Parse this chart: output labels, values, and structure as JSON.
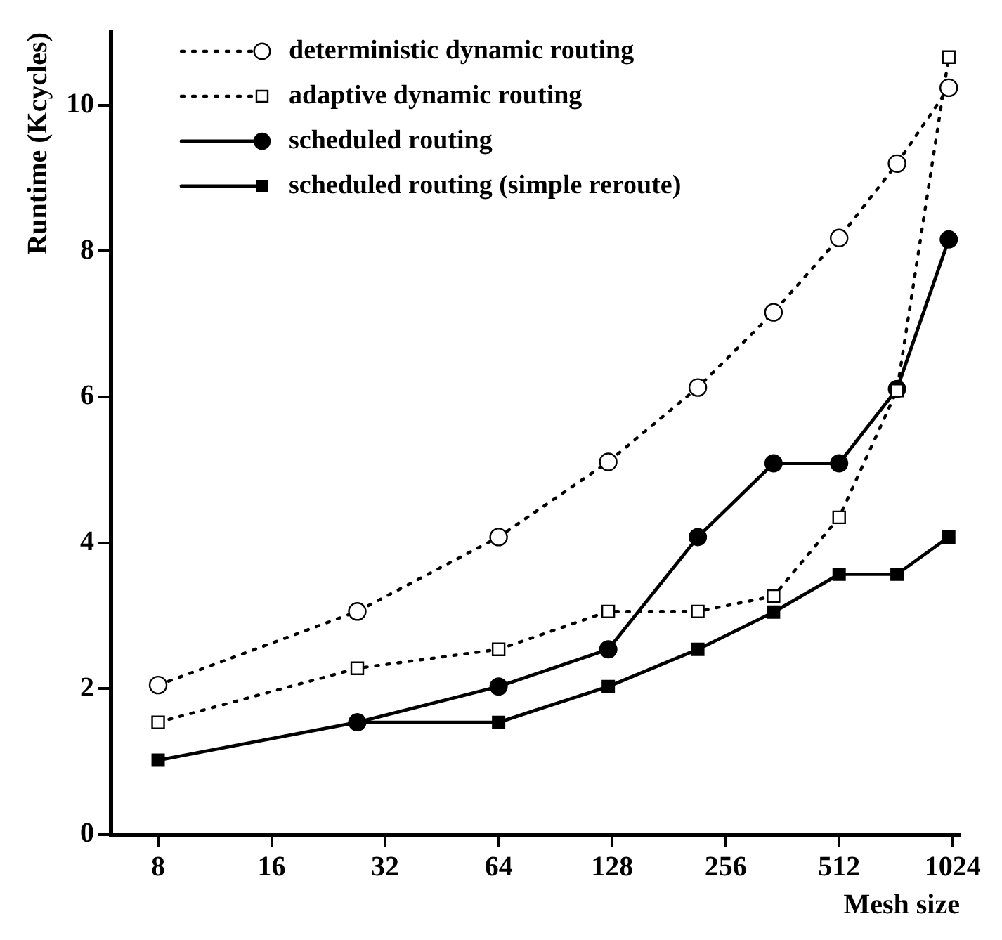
{
  "chart_data": {
    "type": "line",
    "xlabel": "Mesh size",
    "ylabel": "Runtime (Kcycles)",
    "x": [
      8,
      27,
      64,
      125,
      216,
      343,
      512,
      729,
      1000
    ],
    "log": "x",
    "xlim": [
      6,
      1070
    ],
    "xticks": [
      8,
      16,
      32,
      64,
      128,
      256,
      512,
      1024
    ],
    "ylim": [
      0,
      11
    ],
    "yticks": [
      0,
      2,
      4,
      6,
      8,
      10
    ],
    "grid": false,
    "legend": "top left",
    "series": [
      {
        "name": "deterministic dynamic routing",
        "color": "#000000",
        "marker": "circle",
        "line_style": "dotted",
        "values": [
          2.05,
          3.06,
          4.08,
          5.11,
          6.13,
          7.16,
          8.18,
          9.2,
          10.24
        ]
      },
      {
        "name": "adaptive dynamic routing",
        "color": "#000000",
        "marker": "square",
        "line_style": "dotted",
        "values": [
          1.54,
          2.28,
          2.54,
          3.06,
          3.06,
          3.27,
          4.35,
          6.09,
          10.66
        ]
      },
      {
        "name": "scheduled routing",
        "color": "#000000",
        "marker": "circle",
        "line_style": "solid",
        "values": [
          null,
          1.54,
          2.03,
          2.54,
          4.08,
          5.09,
          5.09,
          6.11,
          8.16
        ]
      },
      {
        "name": "scheduled routing (simple reroute)",
        "color": "#000000",
        "marker": "square",
        "line_style": "solid",
        "values": [
          1.02,
          1.54,
          1.54,
          2.03,
          2.54,
          3.05,
          3.57,
          3.57,
          4.08
        ]
      }
    ]
  }
}
